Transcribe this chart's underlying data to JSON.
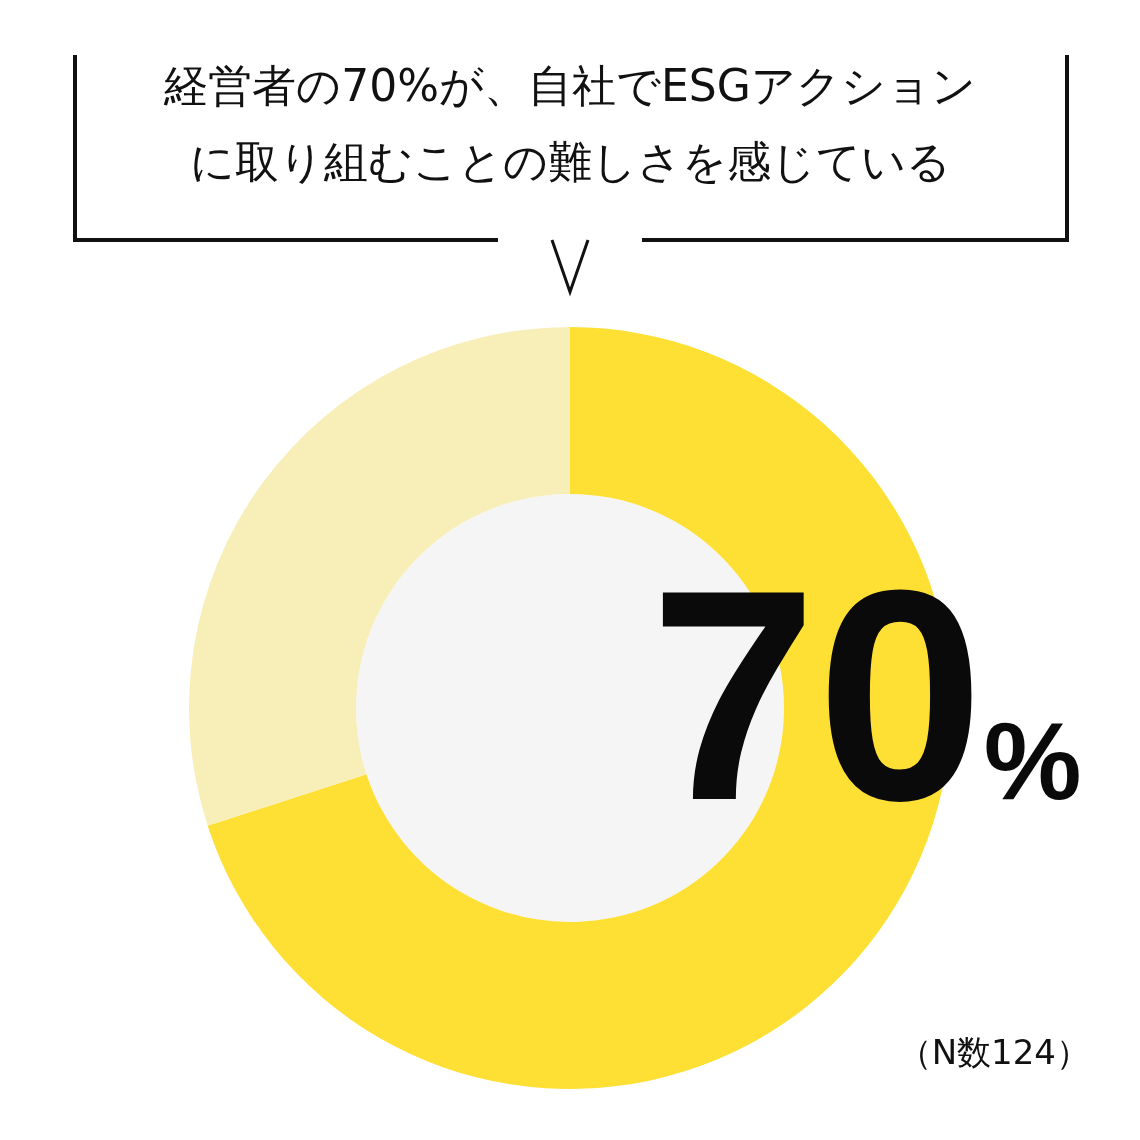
{
  "chart_data": {
    "type": "donut",
    "title": "経営者の70%が、自社でESGアクションに取り組むことの難しさを感じている",
    "categories": [
      null,
      null
    ],
    "values": [
      70,
      30
    ],
    "colors": [
      "#fedf33",
      "#f8eeb8"
    ],
    "value_labels": [
      "70%",
      null
    ],
    "annotations": [
      "（N数124）"
    ]
  }
}
